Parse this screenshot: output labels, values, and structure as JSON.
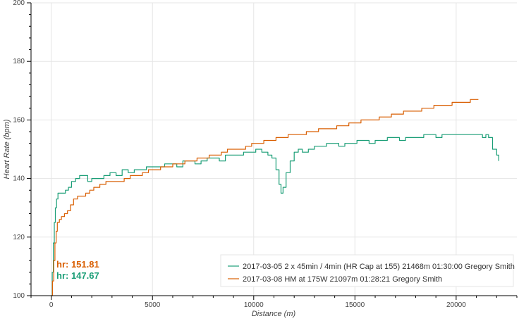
{
  "chart_data": {
    "type": "line",
    "xlabel": "Distance (m)",
    "ylabel": "Heart Rate (bpm)",
    "xlim": [
      -1000,
      23000
    ],
    "ylim": [
      100,
      200
    ],
    "x_ticks": [
      0,
      5000,
      10000,
      15000,
      20000
    ],
    "y_ticks": [
      100,
      120,
      140,
      160,
      180,
      200
    ],
    "grid": true,
    "legend_position": "bottom-right",
    "series": [
      {
        "name": "2017-03-05 2 x 45min / 4min (HR Cap at 155) 21468m 01:30:00 Gregory Smith",
        "color": "#1b9e77",
        "x": [
          0,
          50,
          100,
          150,
          200,
          260,
          330,
          420,
          550,
          700,
          850,
          1000,
          1200,
          1400,
          1600,
          1800,
          2000,
          2300,
          2600,
          2900,
          3200,
          3500,
          3800,
          4100,
          4400,
          4700,
          5000,
          5300,
          5600,
          5900,
          6200,
          6500,
          6800,
          7100,
          7400,
          7700,
          8000,
          8300,
          8600,
          8900,
          9200,
          9500,
          9800,
          10100,
          10400,
          10700,
          10900,
          11100,
          11250,
          11350,
          11450,
          11600,
          11800,
          12000,
          12200,
          12400,
          12700,
          13000,
          13300,
          13600,
          13900,
          14200,
          14500,
          14800,
          15100,
          15400,
          15700,
          16000,
          16300,
          16600,
          16900,
          17200,
          17500,
          17800,
          18100,
          18400,
          18700,
          19000,
          19300,
          19600,
          19900,
          20200,
          20500,
          20800,
          21100,
          21300,
          21468,
          21600,
          21800,
          22000,
          22100
        ],
        "y": [
          100,
          108,
          118,
          125,
          130,
          133,
          135,
          135,
          135,
          136,
          137,
          139,
          140,
          141,
          141,
          139,
          140,
          140,
          141,
          142,
          141,
          143,
          142,
          143,
          143,
          144,
          144,
          144,
          145,
          145,
          144,
          146,
          146,
          145,
          146,
          147,
          147,
          146,
          148,
          148,
          148,
          149,
          149,
          150,
          149,
          148,
          147,
          143,
          138,
          135,
          137,
          142,
          146,
          149,
          150,
          149,
          150,
          151,
          151,
          152,
          152,
          151,
          152,
          152,
          153,
          153,
          152,
          153,
          153,
          154,
          154,
          153,
          154,
          154,
          154,
          155,
          155,
          154,
          155,
          155,
          155,
          155,
          155,
          155,
          155,
          154,
          155,
          154,
          150,
          148,
          146
        ]
      },
      {
        "name": "2017-03-08 HM at 175W 21097m 01:28:21 Gregory Smith",
        "color": "#d95f02",
        "x": [
          0,
          60,
          120,
          180,
          240,
          300,
          400,
          500,
          650,
          800,
          950,
          1100,
          1300,
          1500,
          1700,
          1900,
          2100,
          2400,
          2700,
          3000,
          3300,
          3600,
          3900,
          4200,
          4500,
          4800,
          5100,
          5400,
          5700,
          6000,
          6300,
          6600,
          6900,
          7200,
          7500,
          7800,
          8100,
          8400,
          8700,
          9000,
          9300,
          9600,
          9900,
          10200,
          10500,
          10800,
          11100,
          11400,
          11700,
          12000,
          12300,
          12600,
          12900,
          13200,
          13500,
          13800,
          14100,
          14400,
          14700,
          15000,
          15300,
          15600,
          15900,
          16200,
          16500,
          16800,
          17100,
          17400,
          17700,
          18000,
          18300,
          18600,
          18900,
          19200,
          19500,
          19800,
          20100,
          20400,
          20700,
          21000,
          21097
        ],
        "y": [
          100,
          105,
          112,
          118,
          122,
          125,
          126,
          127,
          128,
          129,
          131,
          133,
          134,
          134,
          135,
          136,
          137,
          138,
          139,
          139,
          139,
          140,
          141,
          141,
          142,
          143,
          143,
          144,
          144,
          145,
          145,
          146,
          146,
          147,
          147,
          148,
          148,
          149,
          150,
          150,
          150,
          151,
          152,
          152,
          153,
          153,
          154,
          154,
          155,
          155,
          155,
          156,
          156,
          157,
          157,
          157,
          158,
          158,
          159,
          159,
          160,
          160,
          160,
          161,
          161,
          162,
          162,
          163,
          163,
          163,
          164,
          164,
          165,
          165,
          165,
          166,
          166,
          166,
          167,
          167,
          167
        ]
      }
    ],
    "annotations": [
      {
        "text": "hr: 151.81",
        "color": "#d95f02"
      },
      {
        "text": "hr: 147.67",
        "color": "#1b9e77"
      }
    ]
  }
}
